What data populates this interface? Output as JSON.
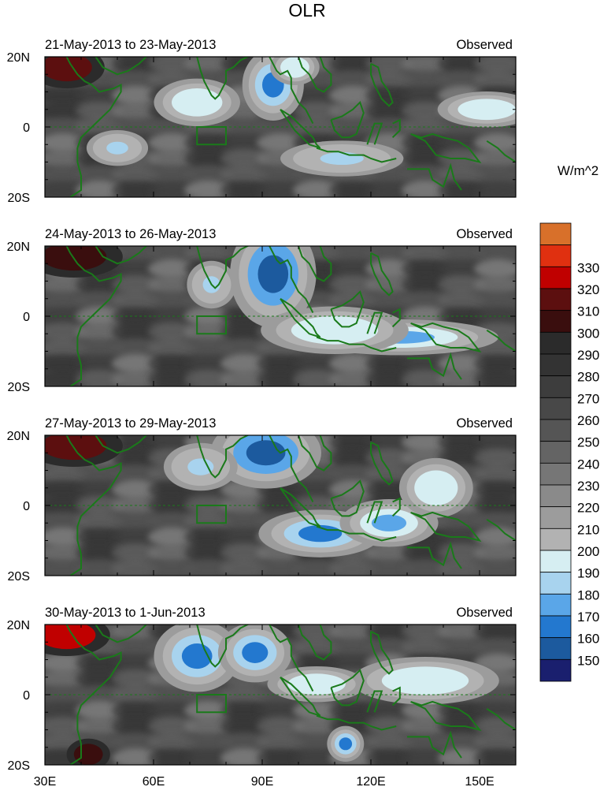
{
  "title": "OLR",
  "colorbar": {
    "units": "W/m^2",
    "levels": [
      150,
      160,
      170,
      180,
      190,
      200,
      210,
      220,
      230,
      240,
      250,
      260,
      270,
      280,
      290,
      300,
      310,
      320,
      330
    ],
    "colors": [
      "#1a1f6e",
      "#1c5a9e",
      "#2378cf",
      "#5aa6e8",
      "#a8d3ee",
      "#d6eef2",
      "#b2b2b2",
      "#9c9c9c",
      "#8a8a8a",
      "#767676",
      "#646464",
      "#555555",
      "#484848",
      "#3d3d3d",
      "#333333",
      "#2b2b2b",
      "#3a0e0e",
      "#5c0f0f",
      "#c00000",
      "#e03010",
      "#d8702a"
    ]
  },
  "map": {
    "lon_range": [
      30,
      160
    ],
    "lat_range": [
      -20,
      20
    ],
    "lon_ticks": [
      "30E",
      "60E",
      "90E",
      "120E",
      "150E"
    ],
    "lon_tick_values": [
      30,
      60,
      90,
      120,
      150
    ],
    "lat_ticks": [
      "20N",
      "0",
      "20S"
    ],
    "lat_tick_values": [
      20,
      0,
      -20
    ],
    "coastline_color": "#1a7a1a",
    "box_region": {
      "lon": [
        72,
        80
      ],
      "lat": [
        -5,
        0
      ]
    }
  },
  "panels": [
    {
      "period": "21-May-2013 to 23-May-2013",
      "label": "Observed",
      "blobs": [
        {
          "lon": 93,
          "lat": 12,
          "rx": 5,
          "ry": 6,
          "value": 160
        },
        {
          "lon": 99,
          "lat": 17,
          "rx": 4,
          "ry": 3,
          "value": 190
        },
        {
          "lon": 72,
          "lat": 7,
          "rx": 7,
          "ry": 4,
          "value": 190
        },
        {
          "lon": 50,
          "lat": -6,
          "rx": 5,
          "ry": 3,
          "value": 180
        },
        {
          "lon": 112,
          "lat": -9,
          "rx": 10,
          "ry": 3,
          "value": 180
        },
        {
          "lon": 152,
          "lat": 5,
          "rx": 8,
          "ry": 3,
          "value": 190
        },
        {
          "lon": 36,
          "lat": 17,
          "rx": 7,
          "ry": 4,
          "value": 310
        }
      ]
    },
    {
      "period": "24-May-2013 to 26-May-2013",
      "label": "Observed",
      "blobs": [
        {
          "lon": 93,
          "lat": 12,
          "rx": 7,
          "ry": 9,
          "value": 150
        },
        {
          "lon": 76,
          "lat": 9,
          "rx": 4,
          "ry": 4,
          "value": 180
        },
        {
          "lon": 128,
          "lat": -6,
          "rx": 16,
          "ry": 3,
          "value": 170
        },
        {
          "lon": 110,
          "lat": -4,
          "rx": 12,
          "ry": 4,
          "value": 190
        },
        {
          "lon": 38,
          "lat": 17,
          "rx": 9,
          "ry": 4,
          "value": 300
        }
      ]
    },
    {
      "period": "27-May-2013 to 29-May-2013",
      "label": "Observed",
      "blobs": [
        {
          "lon": 91,
          "lat": 15,
          "rx": 9,
          "ry": 6,
          "value": 150
        },
        {
          "lon": 73,
          "lat": 11,
          "rx": 6,
          "ry": 4,
          "value": 180
        },
        {
          "lon": 106,
          "lat": -8,
          "rx": 10,
          "ry": 4,
          "value": 160
        },
        {
          "lon": 125,
          "lat": -5,
          "rx": 8,
          "ry": 4,
          "value": 170
        },
        {
          "lon": 138,
          "lat": 5,
          "rx": 6,
          "ry": 5,
          "value": 190
        },
        {
          "lon": 38,
          "lat": 17,
          "rx": 9,
          "ry": 4,
          "value": 310
        }
      ]
    },
    {
      "period": "30-May-2013 to 1-Jun-2013",
      "label": "Observed",
      "blobs": [
        {
          "lon": 72,
          "lat": 11,
          "rx": 7,
          "ry": 6,
          "value": 160
        },
        {
          "lon": 88,
          "lat": 12,
          "rx": 6,
          "ry": 5,
          "value": 160
        },
        {
          "lon": 113,
          "lat": -14,
          "rx": 3,
          "ry": 3,
          "value": 160
        },
        {
          "lon": 135,
          "lat": 4,
          "rx": 12,
          "ry": 4,
          "value": 190
        },
        {
          "lon": 105,
          "lat": 3,
          "rx": 8,
          "ry": 3,
          "value": 190
        },
        {
          "lon": 36,
          "lat": 17,
          "rx": 8,
          "ry": 4,
          "value": 320
        },
        {
          "lon": 42,
          "lat": -17,
          "rx": 4,
          "ry": 3,
          "value": 300
        }
      ]
    }
  ]
}
